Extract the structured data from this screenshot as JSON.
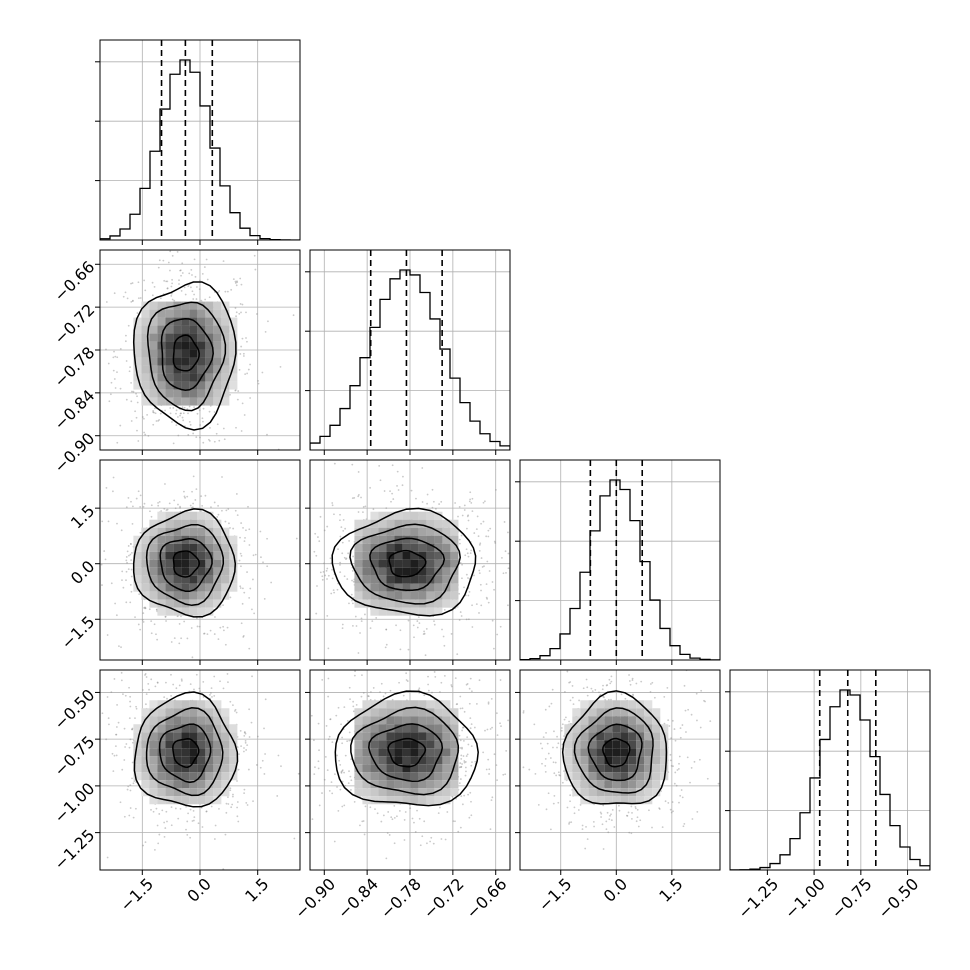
{
  "chart_data": {
    "type": "corner",
    "title": "",
    "parameters": [
      {
        "index": 0,
        "range": [
          -2.6,
          2.6
        ],
        "ticks": [
          -1.5,
          0.0,
          1.5
        ],
        "tick_labels": [
          "−1.5",
          "0.0",
          "1.5"
        ],
        "quantiles": [
          -1.0,
          -0.38,
          0.32
        ]
      },
      {
        "index": 1,
        "range": [
          -0.92,
          -0.64
        ],
        "ticks": [
          -0.9,
          -0.84,
          -0.78,
          -0.72,
          -0.66
        ],
        "tick_labels": [
          "−0.90",
          "−0.84",
          "−0.78",
          "−0.72",
          "−0.66"
        ],
        "quantiles": [
          -0.835,
          -0.785,
          -0.735
        ]
      },
      {
        "index": 2,
        "range": [
          -2.6,
          2.8
        ],
        "ticks": [
          -1.5,
          0.0,
          1.5
        ],
        "tick_labels": [
          "−1.5",
          "0.0",
          "1.5"
        ],
        "quantiles": [
          -0.7,
          0.0,
          0.7
        ]
      },
      {
        "index": 3,
        "range": [
          -1.45,
          -0.38
        ],
        "ticks": [
          -1.25,
          -1.0,
          -0.75,
          -0.5
        ],
        "tick_labels": [
          "−1.25",
          "−1.00",
          "−0.75",
          "−0.50"
        ],
        "quantiles": [
          -0.97,
          -0.82,
          -0.67
        ]
      }
    ],
    "grid": true,
    "histogram_bins": 20,
    "contour_levels": 4,
    "colors": {
      "hist": "#000000",
      "grid": "#b0b0b0",
      "points": "#8a8a8a",
      "contour": "#000000"
    }
  }
}
